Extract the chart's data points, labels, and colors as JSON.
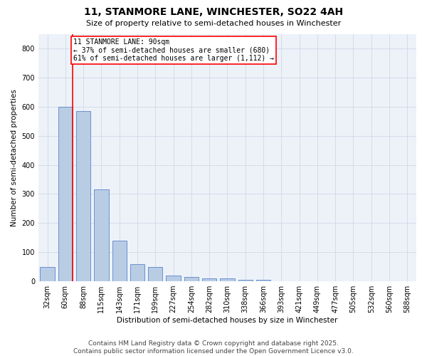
{
  "title": "11, STANMORE LANE, WINCHESTER, SO22 4AH",
  "subtitle": "Size of property relative to semi-detached houses in Winchester",
  "xlabel": "Distribution of semi-detached houses by size in Winchester",
  "ylabel": "Number of semi-detached properties",
  "property_size": 90,
  "property_label": "11 STANMORE LANE: 90sqm",
  "pct_smaller": 37,
  "pct_larger": 61,
  "count_smaller": 680,
  "count_larger": 1112,
  "categories": [
    "32sqm",
    "60sqm",
    "88sqm",
    "115sqm",
    "143sqm",
    "171sqm",
    "199sqm",
    "227sqm",
    "254sqm",
    "282sqm",
    "310sqm",
    "338sqm",
    "366sqm",
    "393sqm",
    "421sqm",
    "449sqm",
    "477sqm",
    "505sqm",
    "532sqm",
    "560sqm",
    "588sqm"
  ],
  "values": [
    50,
    600,
    585,
    315,
    140,
    60,
    50,
    20,
    15,
    10,
    10,
    5,
    5,
    0,
    0,
    0,
    0,
    0,
    0,
    0,
    0
  ],
  "bar_color": "#b8cce4",
  "bar_edge_color": "#4472c4",
  "vline_color": "red",
  "vline_bar_index": 1,
  "ylim_min": 0,
  "ylim_max": 850,
  "yticks": [
    0,
    100,
    200,
    300,
    400,
    500,
    600,
    700,
    800
  ],
  "grid_color": "#d0d8e8",
  "bg_color": "#edf2f9",
  "annotation_box_edge_color": "red",
  "annotation_box_face_color": "white",
  "footer_line1": "Contains HM Land Registry data © Crown copyright and database right 2025.",
  "footer_line2": "Contains public sector information licensed under the Open Government Licence v3.0.",
  "title_fontsize": 10,
  "subtitle_fontsize": 8,
  "axis_label_fontsize": 7.5,
  "tick_fontsize": 7,
  "annotation_fontsize": 7,
  "footer_fontsize": 6.5
}
